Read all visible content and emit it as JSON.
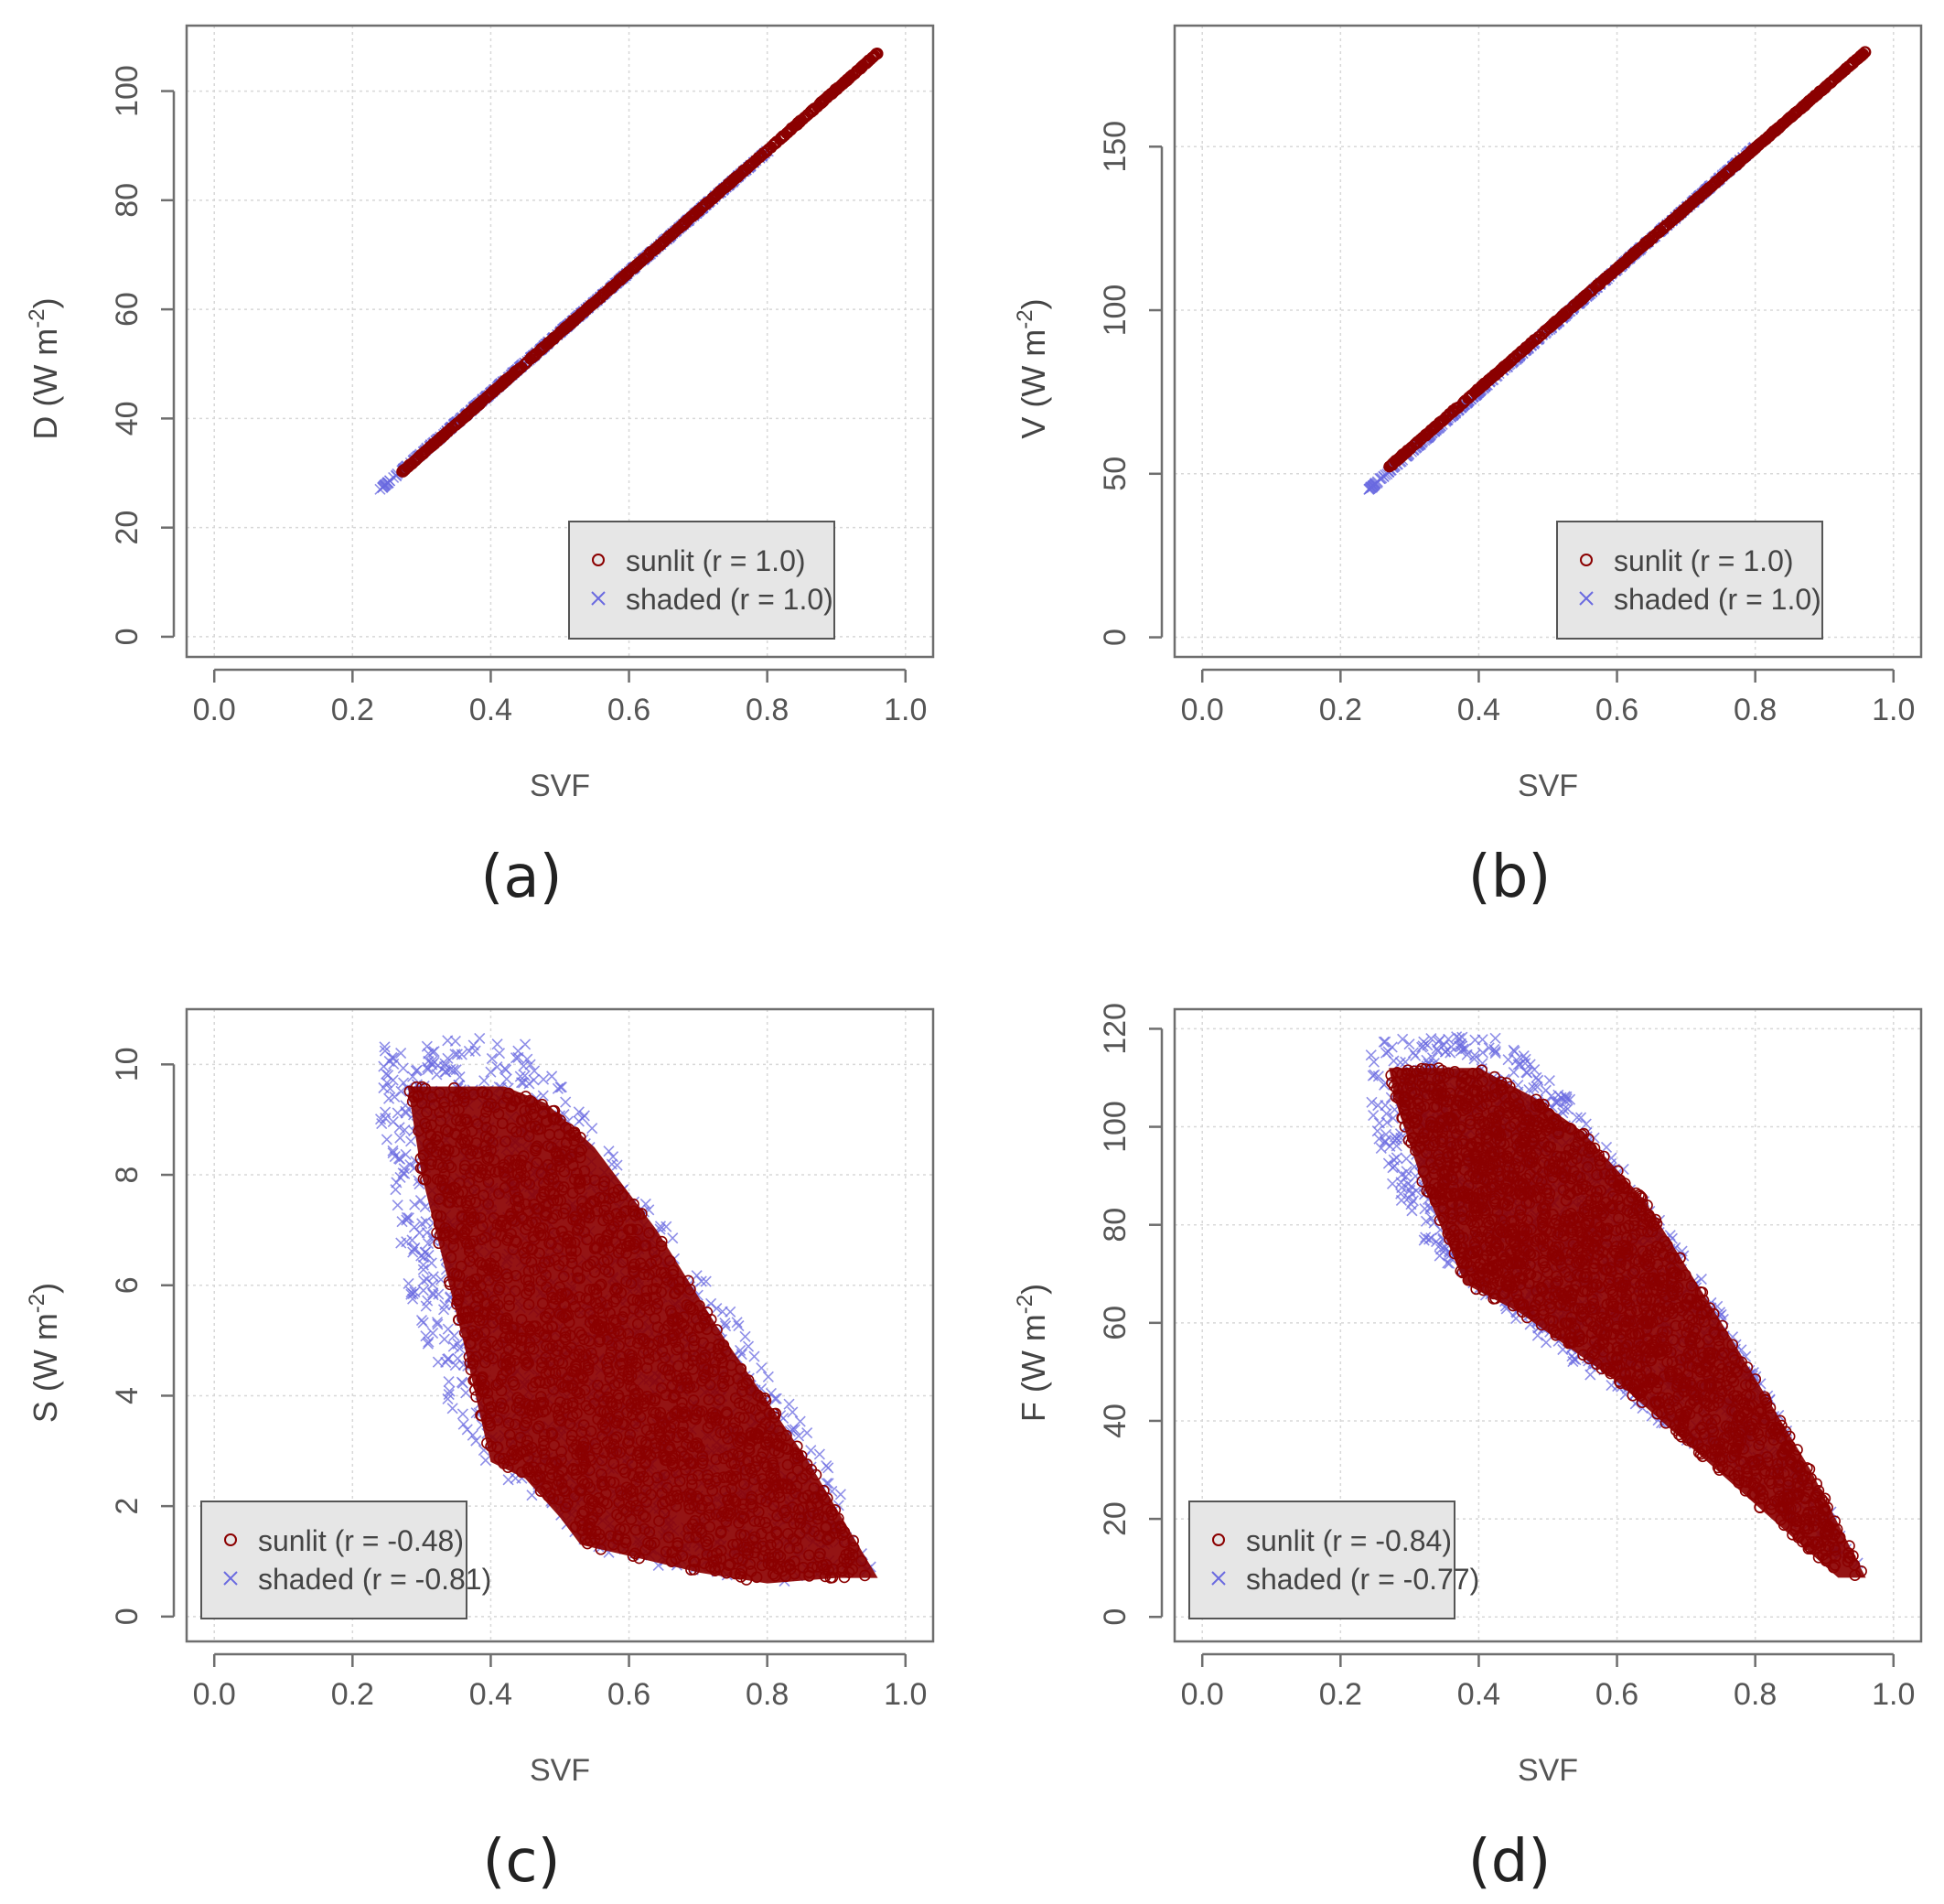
{
  "colors": {
    "sunlit": "#8b0000",
    "shaded": "#6a6ae0",
    "grid": "#d8d8d8",
    "axis": "#6e6e6e",
    "legend_bg": "#e6e6e6"
  },
  "chart_data": [
    {
      "type": "scatter",
      "panel_label": "(a)",
      "xlabel": "SVF",
      "ylabel_main": "D (W m",
      "ylabel_sup": "-2",
      "ylabel_end": ")",
      "xlim": [
        -0.04,
        1.04
      ],
      "ylim": [
        -3.7,
        112
      ],
      "xticks": [
        0.0,
        0.2,
        0.4,
        0.6,
        0.8,
        1.0
      ],
      "xtick_labels": [
        "0.0",
        "0.2",
        "0.4",
        "0.6",
        "0.8",
        "1.0"
      ],
      "yticks": [
        0,
        20,
        40,
        60,
        80,
        100
      ],
      "ytick_labels": [
        "0",
        "20",
        "40",
        "60",
        "80",
        "100"
      ],
      "grid": true,
      "legend_position": "bottom-right",
      "legend": [
        "sunlit (r = 1.0)",
        "shaded (r = 1.0)"
      ],
      "series": [
        {
          "name": "sunlit",
          "marker": "circle",
          "x_range": [
            0.27,
            0.96
          ],
          "y_at_x_min": 30,
          "y_at_x_max": 107
        },
        {
          "name": "shaded",
          "marker": "x",
          "x_range": [
            0.24,
            0.8
          ],
          "y_at_x_min": 27,
          "y_at_x_max": 89
        }
      ]
    },
    {
      "type": "scatter",
      "panel_label": "(b)",
      "xlabel": "SVF",
      "ylabel_main": "V (W m",
      "ylabel_sup": "-2",
      "ylabel_end": ")",
      "xlim": [
        -0.04,
        1.04
      ],
      "ylim": [
        -6,
        187
      ],
      "xticks": [
        0.0,
        0.2,
        0.4,
        0.6,
        0.8,
        1.0
      ],
      "xtick_labels": [
        "0.0",
        "0.2",
        "0.4",
        "0.6",
        "0.8",
        "1.0"
      ],
      "yticks": [
        0,
        50,
        100,
        150
      ],
      "ytick_labels": [
        "0",
        "50",
        "100",
        "150"
      ],
      "grid": true,
      "legend_position": "bottom-right",
      "legend": [
        "sunlit (r = 1.0)",
        "shaded (r = 1.0)"
      ],
      "series": [
        {
          "name": "sunlit",
          "marker": "circle",
          "x_range": [
            0.27,
            0.96
          ],
          "y_at_x_min": 52,
          "y_at_x_max": 179
        },
        {
          "name": "shaded",
          "marker": "x",
          "x_range": [
            0.24,
            0.8
          ],
          "y_at_x_min": 45,
          "y_at_x_max": 150
        }
      ]
    },
    {
      "type": "scatter",
      "panel_label": "(c)",
      "xlabel": "SVF",
      "ylabel_main": "S (W m",
      "ylabel_sup": "-2",
      "ylabel_end": ")",
      "xlim": [
        -0.04,
        1.04
      ],
      "ylim": [
        -0.45,
        11
      ],
      "xticks": [
        0.0,
        0.2,
        0.4,
        0.6,
        0.8,
        1.0
      ],
      "xtick_labels": [
        "0.0",
        "0.2",
        "0.4",
        "0.6",
        "0.8",
        "1.0"
      ],
      "yticks": [
        0,
        2,
        4,
        6,
        8,
        10
      ],
      "ytick_labels": [
        "0",
        "2",
        "4",
        "6",
        "8",
        "10"
      ],
      "grid": true,
      "legend_position": "bottom-left",
      "legend": [
        "sunlit (r = -0.48)",
        "shaded (r = -0.81)"
      ],
      "series": [
        {
          "name": "sunlit",
          "marker": "circle",
          "region": [
            [
              0.28,
              9.6
            ],
            [
              0.42,
              9.6
            ],
            [
              0.48,
              9.3
            ],
            [
              0.55,
              8.5
            ],
            [
              0.64,
              7.0
            ],
            [
              0.74,
              5.0
            ],
            [
              0.86,
              2.8
            ],
            [
              0.96,
              0.7
            ],
            [
              0.9,
              0.7
            ],
            [
              0.8,
              0.6
            ],
            [
              0.7,
              0.8
            ],
            [
              0.6,
              1.1
            ],
            [
              0.53,
              1.3
            ],
            [
              0.5,
              1.8
            ],
            [
              0.45,
              2.5
            ],
            [
              0.4,
              2.8
            ],
            [
              0.36,
              5.0
            ],
            [
              0.3,
              8.0
            ]
          ]
        },
        {
          "name": "shaded",
          "marker": "x",
          "region": [
            [
              0.24,
              10.4
            ],
            [
              0.44,
              10.5
            ],
            [
              0.55,
              9.0
            ],
            [
              0.66,
              7.0
            ],
            [
              0.78,
              5.0
            ],
            [
              0.9,
              2.5
            ],
            [
              0.96,
              0.7
            ],
            [
              0.8,
              0.6
            ],
            [
              0.6,
              1.0
            ],
            [
              0.52,
              1.4
            ],
            [
              0.48,
              2.0
            ],
            [
              0.4,
              2.6
            ],
            [
              0.34,
              3.8
            ],
            [
              0.28,
              6.0
            ],
            [
              0.24,
              9.0
            ]
          ]
        }
      ]
    },
    {
      "type": "scatter",
      "panel_label": "(d)",
      "xlabel": "SVF",
      "ylabel_main": "F (W m",
      "ylabel_sup": "-2",
      "ylabel_end": ")",
      "xlim": [
        -0.04,
        1.04
      ],
      "ylim": [
        -5,
        124
      ],
      "xticks": [
        0.0,
        0.2,
        0.4,
        0.6,
        0.8,
        1.0
      ],
      "xtick_labels": [
        "0.0",
        "0.2",
        "0.4",
        "0.6",
        "0.8",
        "1.0"
      ],
      "yticks": [
        0,
        20,
        40,
        60,
        80,
        100,
        120
      ],
      "ytick_labels": [
        "0",
        "20",
        "40",
        "60",
        "80",
        "100",
        "120"
      ],
      "grid": true,
      "legend_position": "bottom-left",
      "legend": [
        "sunlit (r = -0.84)",
        "shaded (r = -0.77)"
      ],
      "series": [
        {
          "name": "sunlit",
          "marker": "circle",
          "region": [
            [
              0.27,
              112
            ],
            [
              0.4,
              112
            ],
            [
              0.48,
              106
            ],
            [
              0.55,
              99
            ],
            [
              0.64,
              85
            ],
            [
              0.76,
              58
            ],
            [
              0.88,
              30
            ],
            [
              0.96,
              8
            ],
            [
              0.92,
              8
            ],
            [
              0.84,
              18
            ],
            [
              0.72,
              33
            ],
            [
              0.6,
              48
            ],
            [
              0.46,
              62
            ],
            [
              0.38,
              68
            ],
            [
              0.32,
              88
            ],
            [
              0.28,
              105
            ]
          ]
        },
        {
          "name": "shaded",
          "marker": "x",
          "region": [
            [
              0.24,
              118
            ],
            [
              0.43,
              119
            ],
            [
              0.52,
              108
            ],
            [
              0.62,
              90
            ],
            [
              0.72,
              70
            ],
            [
              0.84,
              40
            ],
            [
              0.96,
              8
            ],
            [
              0.86,
              18
            ],
            [
              0.7,
              36
            ],
            [
              0.55,
              50
            ],
            [
              0.42,
              64
            ],
            [
              0.32,
              76
            ],
            [
              0.26,
              92
            ],
            [
              0.24,
              108
            ]
          ]
        }
      ]
    }
  ]
}
